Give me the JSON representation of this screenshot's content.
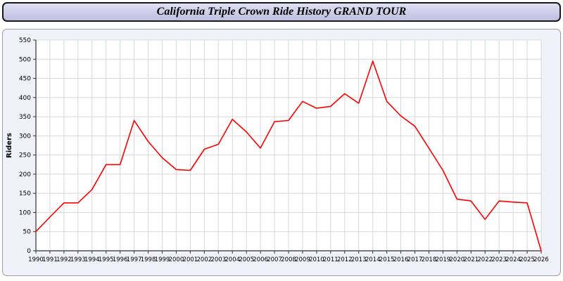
{
  "header": {
    "title": "California Triple Crown Ride History GRAND TOUR"
  },
  "chart_data": {
    "type": "line",
    "title": "California Triple Crown Ride History GRAND TOUR",
    "xlabel": "",
    "ylabel": "Riders",
    "ylim": [
      0,
      550
    ],
    "ytick_step": 50,
    "grid": true,
    "legend": "none",
    "x": [
      1990,
      1991,
      1992,
      1993,
      1994,
      1995,
      1996,
      1997,
      1998,
      1999,
      2000,
      2001,
      2002,
      2003,
      2004,
      2005,
      2006,
      2007,
      2008,
      2009,
      2010,
      2011,
      2012,
      2013,
      2014,
      2015,
      2016,
      2017,
      2018,
      2019,
      2020,
      2021,
      2022,
      2023,
      2024,
      2025,
      2026
    ],
    "series": [
      {
        "name": "Riders",
        "values": [
          50,
          88,
          125,
          125,
          160,
          225,
          225,
          340,
          285,
          243,
          212,
          210,
          265,
          278,
          343,
          310,
          268,
          337,
          340,
          390,
          372,
          377,
          410,
          385,
          495,
          390,
          352,
          325,
          268,
          210,
          135,
          130,
          82,
          130,
          127,
          125,
          0
        ]
      }
    ],
    "colors": {
      "line": "#ff0000",
      "grid": "#d8d8d8",
      "axis": "#333333",
      "plot_bg": "#ffffff",
      "panel_bg": "#f1f1f9",
      "titlebar_bg": "#c9c9e6"
    }
  }
}
